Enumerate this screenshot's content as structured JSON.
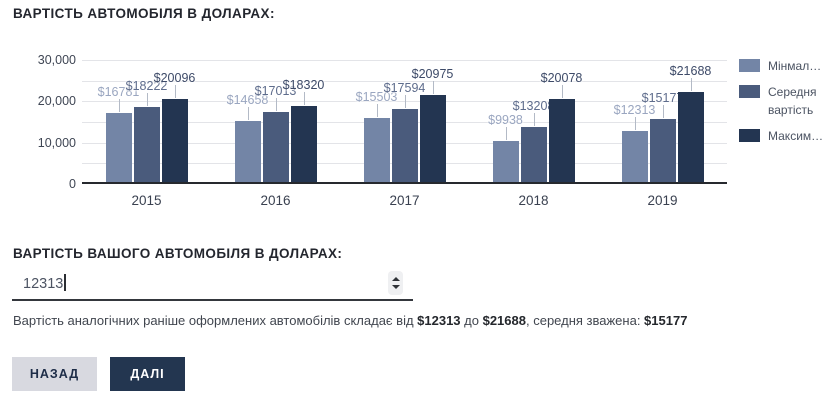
{
  "header": {
    "title": "ВАРТІСТЬ АВТОМОБІЛЯ В ДОЛАРАХ:"
  },
  "chart_data": {
    "type": "bar",
    "title": "ВАРТІСТЬ АВТОМОБІЛЯ В ДОЛАРАХ:",
    "categories": [
      "2015",
      "2016",
      "2017",
      "2018",
      "2019"
    ],
    "series": [
      {
        "name": "Мінмал…",
        "color": "#7385a6",
        "label_color": "#9aa6c0",
        "values": [
          16781,
          14658,
          15503,
          9938,
          12313
        ]
      },
      {
        "name": "Середня вартість",
        "color": "#4a5b7c",
        "label_color": "#5e6c8c",
        "values": [
          18222,
          17013,
          17594,
          13208,
          15177
        ]
      },
      {
        "name": "Максим…",
        "color": "#233551",
        "label_color": "#3d4a68",
        "values": [
          20096,
          18320,
          20975,
          20078,
          21688
        ]
      }
    ],
    "value_prefix": "$",
    "ylim": [
      0,
      30000
    ],
    "grid": true,
    "grid_step": 5000,
    "ytick_values": [
      30000,
      20000,
      10000,
      0
    ],
    "ytick_labels": [
      "30,000",
      "20,000",
      "10,000",
      "0"
    ],
    "legend_position": "right"
  },
  "form": {
    "heading": "ВАРТІСТЬ ВАШОГО АВТОМОБІЛЯ В ДОЛАРАХ:",
    "value": "12313",
    "note": {
      "part1": "Вартість аналогічних раніше оформлених автомобілів складає від ",
      "min": "$12313",
      "part2": " до ",
      "max": "$21688",
      "part3": ", середня зважена: ",
      "avg": "$15177"
    }
  },
  "buttons": {
    "back": "НАЗАД",
    "next": "ДАЛІ"
  }
}
